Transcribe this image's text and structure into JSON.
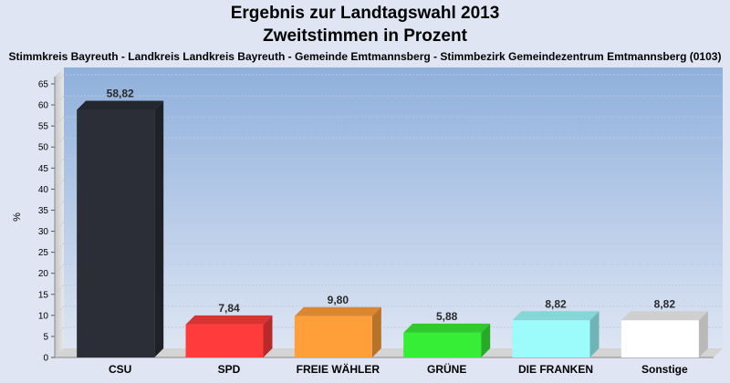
{
  "chart_data": {
    "type": "bar",
    "title": "Ergebnis zur Landtagswahl 2013",
    "subtitle": "Zweitstimmen in Prozent",
    "caption": "Stimmkreis Bayreuth - Landkreis Landkreis Bayreuth - Gemeinde Emtmannsberg - Stimmbezirk Gemeindezentrum Emtmannsberg (0103)",
    "ylabel": "%",
    "xlabel": "",
    "ylim": [
      0,
      65
    ],
    "yticks": [
      0,
      5,
      10,
      15,
      20,
      25,
      30,
      35,
      40,
      45,
      50,
      55,
      60,
      65
    ],
    "grid": true,
    "legend": "none",
    "categories": [
      "CSU",
      "SPD",
      "FREIE WÄHLER",
      "GRÜNE",
      "DIE FRANKEN",
      "Sonstige"
    ],
    "values": [
      58.82,
      7.84,
      9.8,
      5.88,
      8.82,
      8.82
    ],
    "value_labels": [
      "58,82",
      "7,84",
      "9,80",
      "5,88",
      "8,82",
      "8,82"
    ],
    "colors": [
      "#2b2e36",
      "#ff3b3b",
      "#ff9f3a",
      "#36ee36",
      "#9cfcfc",
      "#ffffff"
    ]
  }
}
